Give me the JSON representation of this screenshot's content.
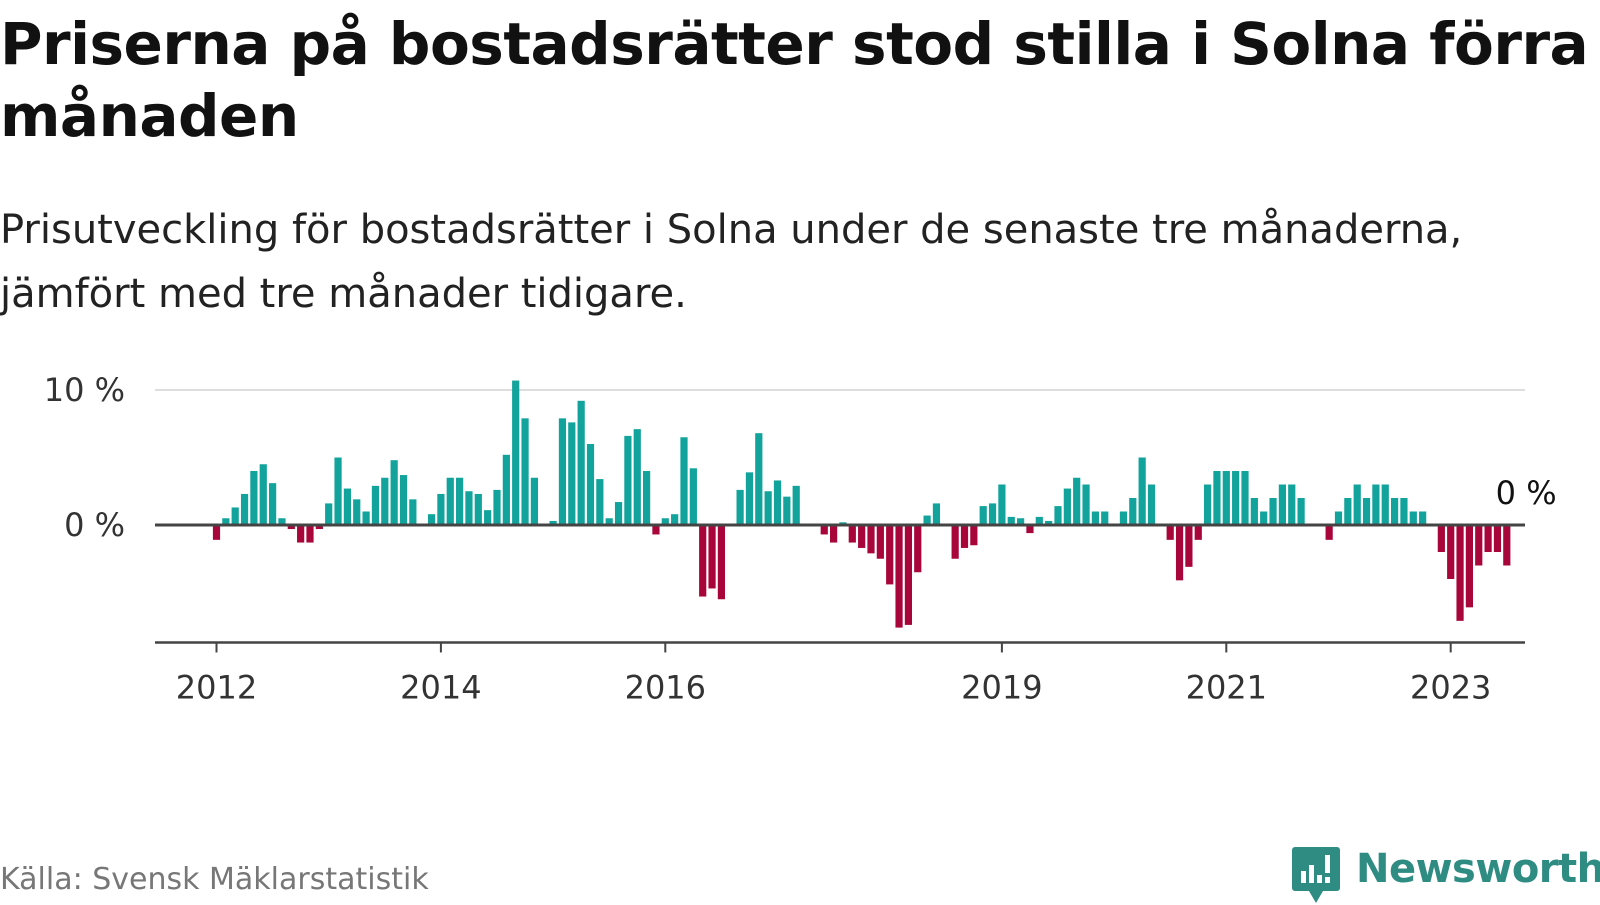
{
  "title": "Priserna på bostadsrätter stod stilla i Solna förra månaden",
  "subtitle": "Prisutveckling för bostadsrätter i Solna under de senaste tre månaderna, jämfört med tre månader tidigare.",
  "source": "Källa: Svensk Mäklarstatistik",
  "brand": {
    "name": "Newsworthy",
    "icon": "newsworthy-logo-icon",
    "color": "#2f8c82"
  },
  "colors": {
    "positive": "#11a39c",
    "negative": "#a8063b",
    "grid": "#dddddd",
    "axis": "#444444"
  },
  "chart_data": {
    "type": "bar",
    "title": "Priserna på bostadsrätter stod stilla i Solna förra månaden",
    "ylabel": "",
    "xlabel": "",
    "unit": "%",
    "ylim": [
      -8.7,
      10
    ],
    "yticks": [
      {
        "value": 0,
        "label": "0 %"
      },
      {
        "value": 10,
        "label": "10 %"
      }
    ],
    "xticks": [
      {
        "label": "2012",
        "index": 0
      },
      {
        "label": "2014",
        "index": 24
      },
      {
        "label": "2016",
        "index": 48
      },
      {
        "label": "2019",
        "index": 84
      },
      {
        "label": "2021",
        "index": 108
      },
      {
        "label": "2023",
        "index": 132
      }
    ],
    "start": "2011-12",
    "frequency": "monthly",
    "last_value_label": "0 %",
    "grid": "horizontal",
    "values": [
      -1.1,
      0.5,
      1.3,
      2.3,
      4.0,
      4.5,
      3.1,
      0.5,
      -0.3,
      -1.3,
      -1.3,
      -0.3,
      1.6,
      5.0,
      2.7,
      1.9,
      1.0,
      2.9,
      3.5,
      4.8,
      3.7,
      1.9,
      0,
      0.8,
      2.3,
      3.5,
      3.5,
      2.5,
      2.3,
      1.1,
      2.6,
      5.2,
      10.7,
      7.9,
      3.5,
      0,
      0.3,
      7.9,
      7.6,
      9.2,
      6.0,
      3.4,
      0.5,
      1.7,
      6.6,
      7.1,
      4.0,
      -0.7,
      0.5,
      0.8,
      6.5,
      4.2,
      -5.3,
      -4.7,
      -5.5,
      0,
      2.6,
      3.9,
      6.8,
      2.5,
      3.3,
      2.1,
      2.9,
      0,
      0,
      -0.7,
      -1.3,
      0.2,
      -1.3,
      -1.7,
      -2.1,
      -2.5,
      -4.4,
      -7.6,
      -7.4,
      -3.5,
      0.7,
      1.6,
      -0.1,
      -2.5,
      -1.7,
      -1.5,
      1.4,
      1.6,
      3.0,
      0.6,
      0.5,
      -0.6,
      0.6,
      0.3,
      1.4,
      2.7,
      3.5,
      3.0,
      1.0,
      1.0,
      0,
      1.0,
      2.0,
      5.0,
      3.0,
      0,
      -1.1,
      -4.1,
      -3.1,
      -1.1,
      3.0,
      4.0,
      4.0,
      4.0,
      4.0,
      2.0,
      1.0,
      2.0,
      3.0,
      3.0,
      2.0,
      0,
      0,
      -1.1,
      1.0,
      2.0,
      3.0,
      2.0,
      3.0,
      3.0,
      2.0,
      2.0,
      1.0,
      1.0,
      0,
      -2.0,
      -4.0,
      -7.1,
      -6.1,
      -3.0,
      -2.0,
      -2.0,
      -3.0,
      0
    ]
  }
}
